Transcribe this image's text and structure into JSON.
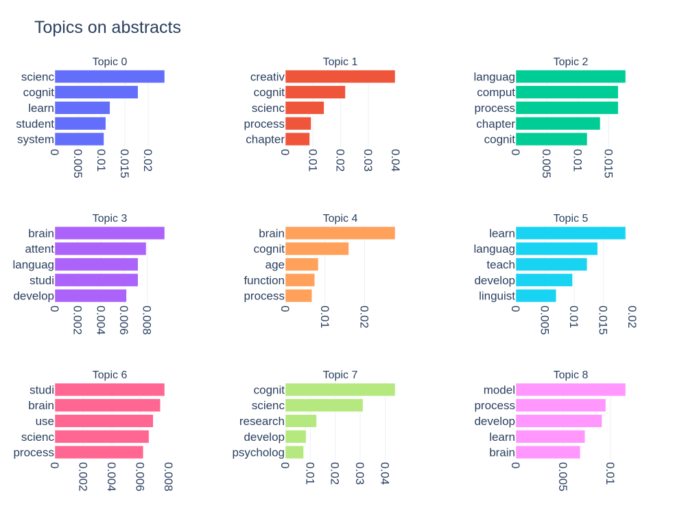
{
  "title": "Topics on abstracts",
  "chart_data": [
    {
      "type": "bar",
      "orientation": "horizontal",
      "title": "Topic 0",
      "color": "#636efa",
      "categories": [
        "scienc",
        "cognit",
        "learn",
        "student",
        "system"
      ],
      "values": [
        0.0235,
        0.0178,
        0.0118,
        0.0109,
        0.0105
      ],
      "xlim": [
        0,
        0.0235
      ],
      "ticks": [
        0,
        0.005,
        0.01,
        0.015,
        0.02
      ],
      "tick_labels": [
        "0",
        "0.005",
        "0.01",
        "0.015",
        "0.02"
      ]
    },
    {
      "type": "bar",
      "orientation": "horizontal",
      "title": "Topic 1",
      "color": "#ef553b",
      "categories": [
        "creativ",
        "cognit",
        "scienc",
        "process",
        "chapter"
      ],
      "values": [
        0.0397,
        0.0217,
        0.014,
        0.0093,
        0.0088
      ],
      "xlim": [
        0,
        0.0397
      ],
      "ticks": [
        0,
        0.01,
        0.02,
        0.03,
        0.04
      ],
      "tick_labels": [
        "0",
        "0.01",
        "0.02",
        "0.03",
        "0.04"
      ]
    },
    {
      "type": "bar",
      "orientation": "horizontal",
      "title": "Topic 2",
      "color": "#00cc96",
      "categories": [
        "languag",
        "comput",
        "process",
        "chapter",
        "cognit"
      ],
      "values": [
        0.0177,
        0.0165,
        0.0165,
        0.0136,
        0.0115
      ],
      "xlim": [
        0,
        0.0177
      ],
      "ticks": [
        0,
        0.005,
        0.01,
        0.015
      ],
      "tick_labels": [
        "0",
        "0.005",
        "0.01",
        "0.015"
      ]
    },
    {
      "type": "bar",
      "orientation": "horizontal",
      "title": "Topic 3",
      "color": "#ab63fa",
      "categories": [
        "brain",
        "attent",
        "languag",
        "studi",
        "develop"
      ],
      "values": [
        0.0095,
        0.0079,
        0.0072,
        0.0072,
        0.0062
      ],
      "xlim": [
        0,
        0.0095
      ],
      "ticks": [
        0,
        0.002,
        0.004,
        0.006,
        0.008
      ],
      "tick_labels": [
        "0",
        "0.002",
        "0.004",
        "0.006",
        "0.008"
      ]
    },
    {
      "type": "bar",
      "orientation": "horizontal",
      "title": "Topic 4",
      "color": "#ffa15a",
      "categories": [
        "brain",
        "cognit",
        "age",
        "function",
        "process"
      ],
      "values": [
        0.0277,
        0.016,
        0.0083,
        0.0074,
        0.0067
      ],
      "xlim": [
        0,
        0.0277
      ],
      "ticks": [
        0,
        0.01,
        0.02
      ],
      "tick_labels": [
        "0",
        "0.01",
        "0.02"
      ]
    },
    {
      "type": "bar",
      "orientation": "horizontal",
      "title": "Topic 5",
      "color": "#19d3f3",
      "categories": [
        "learn",
        "languag",
        "teach",
        "develop",
        "linguist"
      ],
      "values": [
        0.0188,
        0.014,
        0.0122,
        0.0097,
        0.0069
      ],
      "xlim": [
        0,
        0.0188
      ],
      "ticks": [
        0,
        0.005,
        0.01,
        0.015,
        0.02
      ],
      "tick_labels": [
        "0",
        "0.005",
        "0.01",
        "0.015",
        "0.02"
      ]
    },
    {
      "type": "bar",
      "orientation": "horizontal",
      "title": "Topic 6",
      "color": "#ff6692",
      "categories": [
        "studi",
        "brain",
        "use",
        "scienc",
        "process"
      ],
      "values": [
        0.0077,
        0.0074,
        0.0069,
        0.0066,
        0.0062
      ],
      "xlim": [
        0,
        0.0077
      ],
      "ticks": [
        0,
        0.002,
        0.004,
        0.006,
        0.008
      ],
      "tick_labels": [
        "0",
        "0.002",
        "0.004",
        "0.006",
        "0.008"
      ]
    },
    {
      "type": "bar",
      "orientation": "horizontal",
      "title": "Topic 7",
      "color": "#b6e880",
      "categories": [
        "cognit",
        "scienc",
        "research",
        "develop",
        "psycholog"
      ],
      "values": [
        0.044,
        0.0311,
        0.0125,
        0.0083,
        0.0073
      ],
      "xlim": [
        0,
        0.044
      ],
      "ticks": [
        0,
        0.01,
        0.02,
        0.03,
        0.04
      ],
      "tick_labels": [
        "0",
        "0.01",
        "0.02",
        "0.03",
        "0.04"
      ]
    },
    {
      "type": "bar",
      "orientation": "horizontal",
      "title": "Topic 8",
      "color": "#ff97ff",
      "categories": [
        "model",
        "process",
        "develop",
        "learn",
        "brain"
      ],
      "values": [
        0.0116,
        0.0095,
        0.0091,
        0.0073,
        0.0068
      ],
      "xlim": [
        0,
        0.0116
      ],
      "ticks": [
        0,
        0.005,
        0.01
      ],
      "tick_labels": [
        "0",
        "0.005",
        "0.01"
      ]
    }
  ]
}
